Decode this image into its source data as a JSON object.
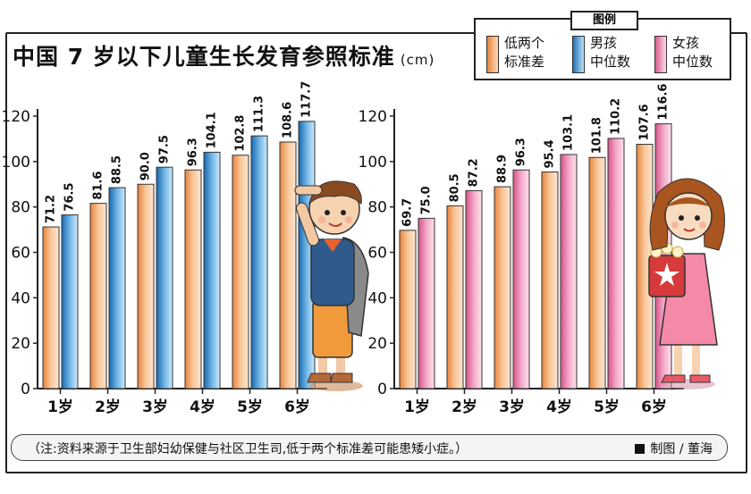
{
  "title": "中国 7 岁以下儿童生长发育参照标准",
  "unit": "cm",
  "legend": {
    "title": "图例",
    "items": [
      {
        "line1": "低两个",
        "line2": "标准差",
        "color": "#f0a060"
      },
      {
        "line1": "男孩",
        "line2": "中位数",
        "color": "#3a8cd0"
      },
      {
        "line1": "女孩",
        "line2": "中位数",
        "color": "#e87aa6"
      }
    ]
  },
  "note": {
    "text": "（注:资料来源于卫生部妇幼保健与社区卫生司,低于两个标准差可能患矮小症。）",
    "credit": "制图 / 董海"
  },
  "chart_data": [
    {
      "type": "bar",
      "categories": [
        "1岁",
        "2岁",
        "3岁",
        "4岁",
        "5岁",
        "6岁"
      ],
      "series": [
        {
          "name": "低两个标准差",
          "values": [
            71.2,
            81.6,
            90.0,
            96.3,
            102.8,
            108.6
          ],
          "color": "#f0a060"
        },
        {
          "name": "男孩中位数",
          "values": [
            76.5,
            88.5,
            97.5,
            104.1,
            111.3,
            117.7
          ],
          "color": "#3a8cd0"
        }
      ],
      "yticks": [
        0,
        20,
        40,
        60,
        80,
        100,
        120
      ],
      "ylim": [
        0,
        120
      ],
      "grid": false
    },
    {
      "type": "bar",
      "categories": [
        "1岁",
        "2岁",
        "3岁",
        "4岁",
        "5岁",
        "6岁"
      ],
      "series": [
        {
          "name": "低两个标准差",
          "values": [
            69.7,
            80.5,
            88.9,
            95.4,
            101.8,
            107.6
          ],
          "color": "#f0a060"
        },
        {
          "name": "女孩中位数",
          "values": [
            75.0,
            87.2,
            96.3,
            103.1,
            110.2,
            116.6
          ],
          "color": "#e87aa6"
        }
      ],
      "yticks": [
        0,
        20,
        40,
        60,
        80,
        100,
        120
      ],
      "ylim": [
        0,
        120
      ],
      "grid": false
    }
  ]
}
